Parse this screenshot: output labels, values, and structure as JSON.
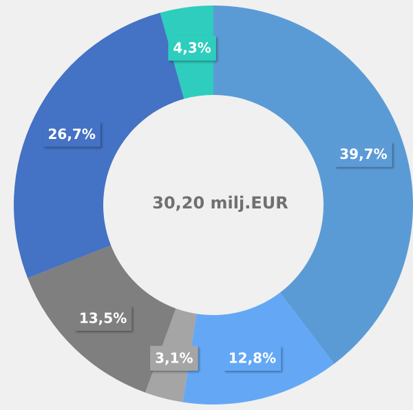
{
  "chart_data": {
    "type": "donut",
    "center_label": "30,20 milj.EUR",
    "categories": [
      null,
      null,
      null,
      null,
      null,
      null
    ],
    "values": [
      39.7,
      12.8,
      3.1,
      13.5,
      26.7,
      4.3
    ],
    "value_labels": [
      "39,7%",
      "12,8%",
      "3,1%",
      "13,5%",
      "26,7%",
      "4,3%"
    ],
    "colors": [
      "#5b9bd5",
      "#64a8f5",
      "#a5a5a5",
      "#7f7f7f",
      "#4472c4",
      "#2ecdbd"
    ]
  }
}
